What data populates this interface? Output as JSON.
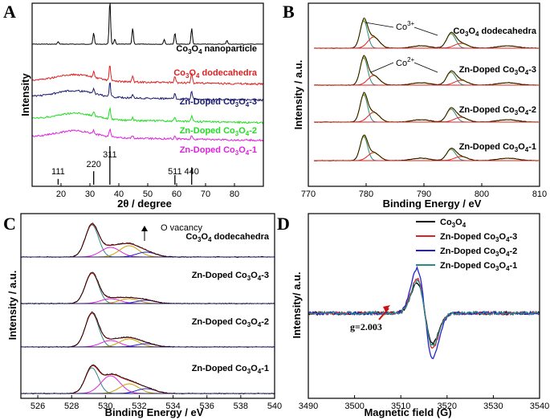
{
  "chart_data": [
    {
      "panel": "A",
      "type": "line",
      "title": "",
      "xlabel": "2θ / degree",
      "ylabel": "Intensity",
      "xlim": [
        10,
        90
      ],
      "xticks": [
        20,
        30,
        40,
        50,
        60,
        70,
        80
      ],
      "series": [
        {
          "name": "Co3O4 nanoparticle",
          "label_main": "Co",
          "label_sub": "3",
          "label_mid": "O",
          "label_sub2": "4",
          "label_tail": " nanoparticle",
          "color": "#000000",
          "peaks": [
            [
              19,
              3
            ],
            [
              31.3,
              14
            ],
            [
              36.9,
              55
            ],
            [
              38.6,
              6
            ],
            [
              44.8,
              20
            ],
            [
              55.7,
              6
            ],
            [
              59.4,
              14
            ],
            [
              65.2,
              20
            ],
            [
              77.4,
              5
            ]
          ]
        },
        {
          "name": "Co3O4 dodecahedra",
          "label_main": "Co",
          "label_sub": "3",
          "label_mid": "O",
          "label_sub2": "4",
          "label_tail": " dodecahedra",
          "color": "#dd2222",
          "peaks": [
            [
              31.3,
              8
            ],
            [
              36.9,
              20
            ],
            [
              44.8,
              7
            ],
            [
              59.4,
              8
            ],
            [
              65.2,
              12
            ]
          ]
        },
        {
          "name": "Zn-Doped Co3O4-3",
          "label_main": "Zn-Doped Co",
          "label_sub": "3",
          "label_mid": "O",
          "label_sub2": "4",
          "label_tail": "-3",
          "color": "#1a1a6e",
          "peaks": [
            [
              31.3,
              7
            ],
            [
              36.9,
              18
            ],
            [
              44.8,
              5
            ],
            [
              59.4,
              7
            ],
            [
              65.2,
              10
            ]
          ]
        },
        {
          "name": "Zn-Doped Co3O4-2",
          "label_main": "Zn-Doped Co",
          "label_sub": "3",
          "label_mid": "O",
          "label_sub2": "4",
          "label_tail": "-2",
          "color": "#22dd22",
          "peaks": [
            [
              31.3,
              6
            ],
            [
              36.9,
              14
            ],
            [
              44.8,
              4
            ],
            [
              59.4,
              5
            ],
            [
              65.2,
              7
            ]
          ]
        },
        {
          "name": "Zn-Doped Co3O4-1",
          "label_main": "Zn-Doped Co",
          "label_sub": "3",
          "label_mid": "O",
          "label_sub2": "4",
          "label_tail": "-1",
          "color": "#dd22dd",
          "peaks": [
            [
              31.3,
              4
            ],
            [
              36.9,
              10
            ],
            [
              44.8,
              3
            ],
            [
              59.4,
              4
            ],
            [
              65.2,
              5
            ]
          ]
        }
      ],
      "reference_lines": [
        {
          "label": "111",
          "x": 19.0,
          "h": 0.15
        },
        {
          "label": "220",
          "x": 31.3,
          "h": 0.35
        },
        {
          "label": "311",
          "x": 36.9,
          "h": 1.0
        },
        {
          "label": "511",
          "x": 59.4,
          "h": 0.25
        },
        {
          "label": "440",
          "x": 65.2,
          "h": 0.45
        }
      ]
    },
    {
      "panel": "B",
      "type": "line",
      "xlabel": "Binding Energy / eV",
      "ylabel": "Intensity / a.u.",
      "xlim": [
        770,
        810
      ],
      "xticks": [
        770,
        780,
        790,
        800,
        810
      ],
      "spectra": [
        {
          "name": "Co3O4 dodecahedra",
          "label_main": "Co",
          "label_sub": "3",
          "label_mid": "O",
          "label_sub2": "4",
          "label_tail": " dodecahedra"
        },
        {
          "name": "Zn-Doped Co3O4-3",
          "label_main": "Zn-Doped Co",
          "label_sub": "3",
          "label_mid": "O",
          "label_sub2": "4",
          "label_tail": "-3"
        },
        {
          "name": "Zn-Doped Co3O4-2",
          "label_main": "Zn-Doped Co",
          "label_sub": "3",
          "label_mid": "O",
          "label_sub2": "4",
          "label_tail": "-2"
        },
        {
          "name": "Zn-Doped Co3O4-1",
          "label_main": "Zn-Doped Co",
          "label_sub": "3",
          "label_mid": "O",
          "label_sub2": "4",
          "label_tail": "-1"
        }
      ],
      "annotations": [
        {
          "text": "Co",
          "sup": "3+"
        },
        {
          "text": "Co",
          "sup": "2+"
        }
      ],
      "peak_positions_eV": [
        779.6,
        781.3,
        794.7,
        796.4,
        789.5,
        804.5
      ]
    },
    {
      "panel": "C",
      "type": "line",
      "xlabel": "Binding Energy / eV",
      "ylabel": "Intensity / a.u.",
      "xlim": [
        525,
        540
      ],
      "xticks": [
        526,
        528,
        530,
        532,
        534,
        536,
        538,
        540
      ],
      "annotation": "O vacancy",
      "spectra": [
        {
          "name": "Co3O4 dodecahedra",
          "label_main": "Co",
          "label_sub": "3",
          "label_mid": "O",
          "label_sub2": "4",
          "label_tail": " dodecahedra"
        },
        {
          "name": "Zn-Doped Co3O4-3",
          "label_main": "Zn-Doped Co",
          "label_sub": "3",
          "label_mid": "O",
          "label_sub2": "4",
          "label_tail": "-3"
        },
        {
          "name": "Zn-Doped Co3O4-2",
          "label_main": "Zn-Doped Co",
          "label_sub": "3",
          "label_mid": "O",
          "label_sub2": "4",
          "label_tail": "-2"
        },
        {
          "name": "Zn-Doped Co3O4-1",
          "label_main": "Zn-Doped Co",
          "label_sub": "3",
          "label_mid": "O",
          "label_sub2": "4",
          "label_tail": "-1"
        }
      ],
      "peak_positions_eV": [
        529.2,
        530.3,
        531.4,
        532.4
      ]
    },
    {
      "panel": "D",
      "type": "line",
      "xlabel": "Magnetic field (G)",
      "ylabel": "Intensity/ a.u.",
      "xlim": [
        3490,
        3540
      ],
      "xticks": [
        3490,
        3500,
        3510,
        3520,
        3530,
        3540
      ],
      "annotation": "g=2.003",
      "center_G": 3515.2,
      "series": [
        {
          "name": "Co3O4",
          "label_main": "Co",
          "label_sub": "3",
          "label_mid": "O",
          "label_sub2": "4",
          "label_tail": "",
          "color": "#000000",
          "amplitude": 0.62
        },
        {
          "name": "Zn-Doped Co3O4-3",
          "label_main": "Zn-Doped Co",
          "label_sub": "3",
          "label_mid": "O",
          "label_sub2": "4",
          "label_tail": "-3",
          "color": "#dd2222",
          "amplitude": 0.72
        },
        {
          "name": "Zn-Doped Co3O4-2",
          "label_main": "Zn-Doped Co",
          "label_sub": "3",
          "label_mid": "O",
          "label_sub2": "4",
          "label_tail": "-2",
          "color": "#2222cc",
          "amplitude": 0.92
        },
        {
          "name": "Zn-Doped Co3O4-1",
          "label_main": "Zn-Doped Co",
          "label_sub": "3",
          "label_mid": "O",
          "label_sub2": "4",
          "label_tail": "-1",
          "color": "#2a8a8a",
          "amplitude": 0.68
        }
      ]
    }
  ]
}
